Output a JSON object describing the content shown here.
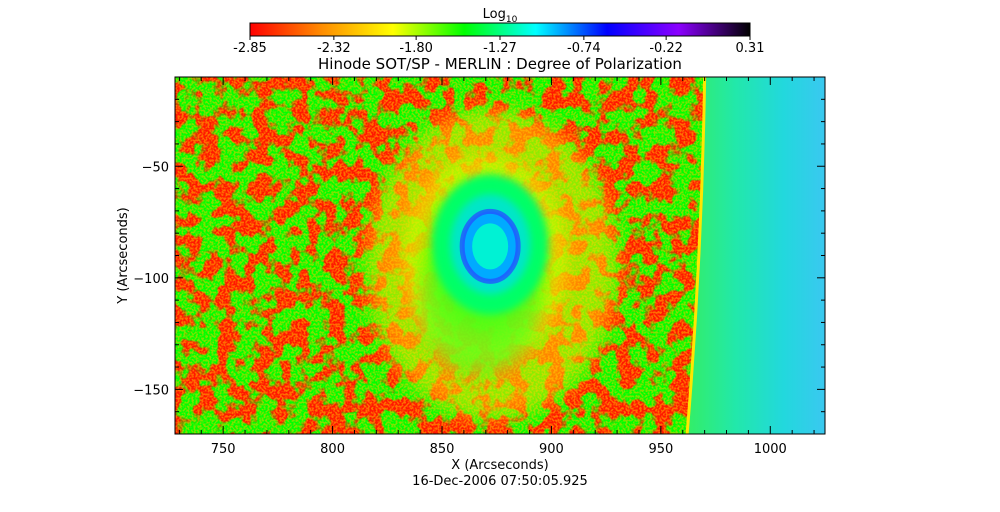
{
  "chart_data": {
    "type": "heatmap",
    "title": "Hinode SOT/SP - MERLIN : Degree of Polarization",
    "subtitle": "16-Dec-2006 07:50:05.925",
    "xlabel": "X (Arcseconds)",
    "ylabel": "Y (Arcseconds)",
    "xlim": [
      728,
      1025
    ],
    "ylim": [
      -170,
      -10
    ],
    "x_ticks": [
      750,
      800,
      850,
      900,
      950,
      1000
    ],
    "y_ticks": [
      -50,
      -100,
      -150
    ],
    "colorbar": {
      "label": "Log",
      "label_subscript": "10",
      "range": [
        -2.85,
        0.31
      ],
      "tick_values": [
        -2.85,
        -2.32,
        -1.8,
        -1.27,
        -0.74,
        -0.22,
        0.31
      ],
      "tick_labels": [
        "-2.85",
        "-2.32",
        "-1.80",
        "-1.27",
        "-0.74",
        "-0.22",
        "0.31"
      ],
      "colormap": [
        "#ff0000",
        "#ff8c00",
        "#ffff00",
        "#00ff00",
        "#00ffff",
        "#0000ff",
        "#8b00ff",
        "#000000"
      ]
    },
    "features": {
      "background_value": -2.85,
      "sunspot": {
        "x": 872,
        "y": -85,
        "umbra_value": -0.74,
        "penumbra_value": -1.27
      },
      "limb": {
        "x_at_top": 970,
        "x_at_bottom": 962,
        "offlimb_value": -1.0
      }
    }
  }
}
